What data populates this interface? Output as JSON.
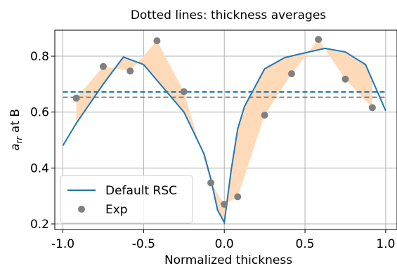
{
  "chart_data": {
    "type": "line",
    "title": "Dotted lines: thickness averages",
    "xlabel": "Normalized thickness",
    "ylabel_base": "a",
    "ylabel_sub": "rr",
    "ylabel_rest": " at B",
    "xlim": [
      -1.05,
      1.07
    ],
    "ylim": [
      0.18,
      0.893
    ],
    "xticks": [
      -1.0,
      -0.5,
      0.0,
      0.5,
      1.0
    ],
    "xtick_labels": [
      "-1.0",
      "-0.5",
      "0.0",
      "0.5",
      "1.0"
    ],
    "yticks": [
      0.2,
      0.4,
      0.6,
      0.8
    ],
    "ytick_labels": [
      "0.2",
      "0.4",
      "0.6",
      "0.8"
    ],
    "grid": true,
    "legend_position": "lower-left",
    "series": [
      {
        "name": "Default RSC",
        "kind": "line",
        "color": "#1f77b4",
        "x": [
          -1.0,
          -0.917,
          -0.75,
          -0.625,
          -0.5,
          -0.25,
          -0.125,
          -0.083,
          -0.042,
          0.0,
          0.042,
          0.083,
          0.125,
          0.25,
          0.375,
          0.5,
          0.625,
          0.75,
          0.875,
          1.0
        ],
        "y": [
          0.48,
          0.56,
          0.7,
          0.797,
          0.77,
          0.6,
          0.45,
          0.36,
          0.25,
          0.205,
          0.39,
          0.54,
          0.62,
          0.755,
          0.795,
          0.812,
          0.828,
          0.815,
          0.77,
          0.605
        ]
      },
      {
        "name": "Exp",
        "kind": "scatter",
        "color": "#808080",
        "x": [
          -0.917,
          -0.75,
          -0.583,
          -0.417,
          -0.25,
          -0.083,
          0.0,
          0.083,
          0.25,
          0.417,
          0.583,
          0.75,
          0.917
        ],
        "y": [
          0.65,
          0.763,
          0.747,
          0.855,
          0.673,
          0.347,
          0.27,
          0.297,
          0.589,
          0.737,
          0.86,
          0.718,
          0.616
        ]
      }
    ],
    "hlines": [
      {
        "y": 0.672,
        "color": "#1f77b4",
        "style": "dashed"
      },
      {
        "y": 0.653,
        "color": "#808080",
        "style": "dashed"
      }
    ],
    "fill_color": "#ffdab9"
  }
}
